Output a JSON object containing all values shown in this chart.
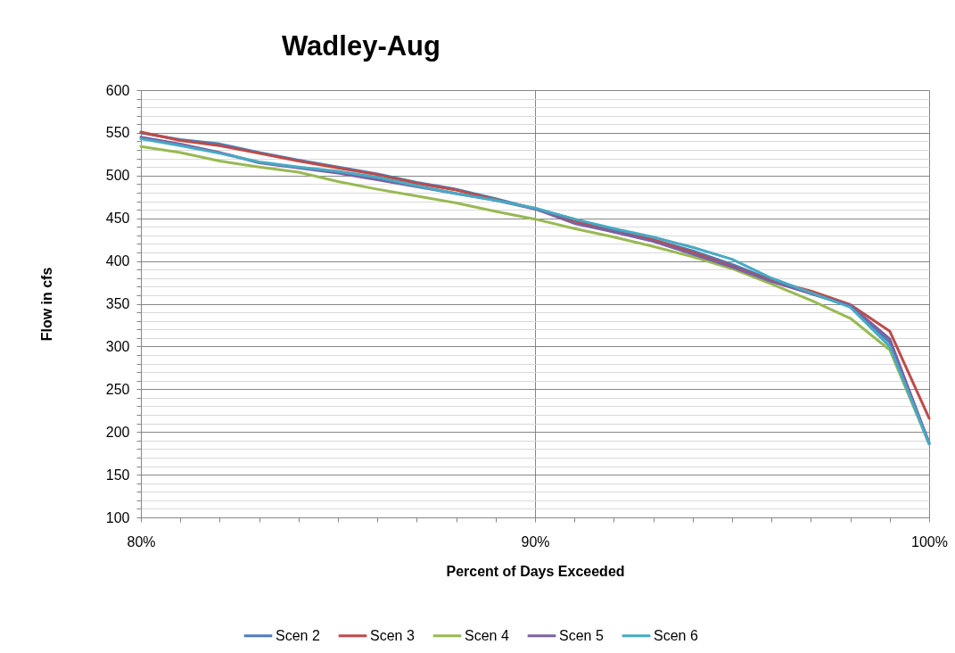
{
  "chart_data": {
    "type": "line",
    "title": "Wadley-Aug",
    "xlabel": "Percent of Days Exceeded",
    "ylabel": "Flow in cfs",
    "x": [
      80,
      81,
      82,
      83,
      84,
      85,
      86,
      87,
      88,
      89,
      90,
      91,
      92,
      93,
      94,
      95,
      96,
      97,
      98,
      99,
      100
    ],
    "series": [
      {
        "name": "Scen 2",
        "color": "#4a7ebb",
        "values": [
          550,
          542,
          537,
          527,
          518,
          510,
          502,
          492,
          484,
          473,
          461,
          449,
          436,
          425,
          412,
          396,
          378,
          362,
          347,
          305,
          187
        ]
      },
      {
        "name": "Scen 3",
        "color": "#be4b48",
        "values": [
          551,
          541,
          535,
          526,
          517,
          509,
          501,
          491,
          483,
          472,
          461,
          447,
          434,
          425,
          410,
          394,
          377,
          365,
          349,
          318,
          216
        ]
      },
      {
        "name": "Scen 4",
        "color": "#98b954",
        "values": [
          534,
          527,
          517,
          510,
          504,
          493,
          484,
          476,
          468,
          458,
          449,
          438,
          428,
          417,
          405,
          391,
          373,
          354,
          333,
          296,
          186
        ]
      },
      {
        "name": "Scen 5",
        "color": "#7d60a0",
        "values": [
          545,
          537,
          527,
          515,
          509,
          503,
          495,
          487,
          479,
          471,
          461,
          444,
          434,
          423,
          408,
          393,
          376,
          362,
          348,
          309,
          187
        ]
      },
      {
        "name": "Scen 6",
        "color": "#46aac5",
        "values": [
          543,
          535,
          526,
          516,
          510,
          505,
          498,
          488,
          479,
          471,
          462,
          449,
          438,
          428,
          416,
          402,
          380,
          363,
          346,
          300,
          186
        ]
      }
    ],
    "xlim": [
      80,
      100
    ],
    "xticks": [
      {
        "value": 80,
        "label": "80%"
      },
      {
        "value": 81,
        "label": null
      },
      {
        "value": 82,
        "label": null
      },
      {
        "value": 83,
        "label": null
      },
      {
        "value": 84,
        "label": null
      },
      {
        "value": 85,
        "label": null
      },
      {
        "value": 86,
        "label": null
      },
      {
        "value": 87,
        "label": null
      },
      {
        "value": 88,
        "label": null
      },
      {
        "value": 89,
        "label": null
      },
      {
        "value": 90,
        "label": "90%"
      },
      {
        "value": 91,
        "label": null
      },
      {
        "value": 92,
        "label": null
      },
      {
        "value": 93,
        "label": null
      },
      {
        "value": 94,
        "label": null
      },
      {
        "value": 95,
        "label": null
      },
      {
        "value": 96,
        "label": null
      },
      {
        "value": 97,
        "label": null
      },
      {
        "value": 98,
        "label": null
      },
      {
        "value": 99,
        "label": null
      },
      {
        "value": 100,
        "label": "100%"
      }
    ],
    "ylim": [
      100,
      600
    ],
    "yticks": [
      100,
      {
        "value": 110,
        "label": null
      },
      {
        "value": 120,
        "label": null
      },
      {
        "value": 130,
        "label": null
      },
      {
        "value": 140,
        "label": null
      },
      150,
      {
        "value": 160,
        "label": null
      },
      {
        "value": 170,
        "label": null
      },
      {
        "value": 180,
        "label": null
      },
      {
        "value": 190,
        "label": null
      },
      200,
      {
        "value": 210,
        "label": null
      },
      {
        "value": 220,
        "label": null
      },
      {
        "value": 230,
        "label": null
      },
      {
        "value": 240,
        "label": null
      },
      250,
      {
        "value": 260,
        "label": null
      },
      {
        "value": 270,
        "label": null
      },
      {
        "value": 280,
        "label": null
      },
      {
        "value": 290,
        "label": null
      },
      300,
      {
        "value": 310,
        "label": null
      },
      {
        "value": 320,
        "label": null
      },
      {
        "value": 330,
        "label": null
      },
      {
        "value": 340,
        "label": null
      },
      350,
      {
        "value": 360,
        "label": null
      },
      {
        "value": 370,
        "label": null
      },
      {
        "value": 380,
        "label": null
      },
      {
        "value": 390,
        "label": null
      },
      400,
      {
        "value": 410,
        "label": null
      },
      {
        "value": 420,
        "label": null
      },
      {
        "value": 430,
        "label": null
      },
      {
        "value": 440,
        "label": null
      },
      450,
      {
        "value": 460,
        "label": null
      },
      {
        "value": 470,
        "label": null
      },
      {
        "value": 480,
        "label": null
      },
      {
        "value": 490,
        "label": null
      },
      500,
      {
        "value": 510,
        "label": null
      },
      {
        "value": 520,
        "label": null
      },
      {
        "value": 530,
        "label": null
      },
      {
        "value": 540,
        "label": null
      },
      550,
      {
        "value": 560,
        "label": null
      },
      {
        "value": 570,
        "label": null
      },
      {
        "value": 580,
        "label": null
      },
      {
        "value": 590,
        "label": null
      },
      600
    ],
    "grid": true,
    "legend": "bottom"
  }
}
